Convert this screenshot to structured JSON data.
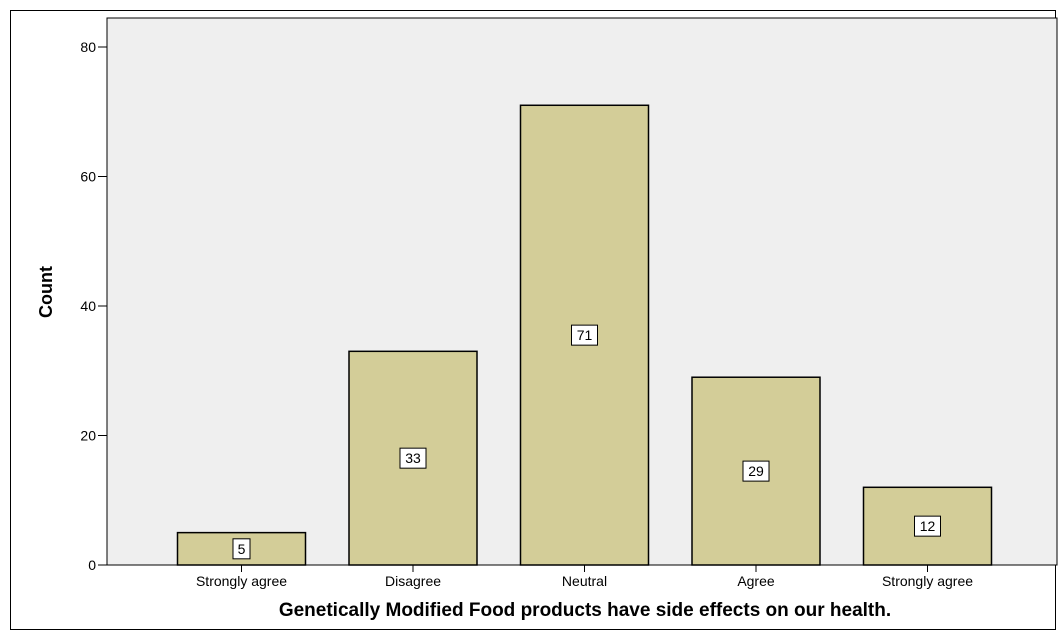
{
  "chart_data": {
    "type": "bar",
    "title": "",
    "xlabel": "Genetically Modified Food products have side effects on our health.",
    "ylabel": "Count",
    "categories": [
      "Strongly agree",
      "Disagree",
      "Neutral",
      "Agree",
      "Strongly agree"
    ],
    "values": [
      5,
      33,
      71,
      29,
      12
    ],
    "data_labels": [
      "5",
      "33",
      "71",
      "29",
      "12"
    ],
    "ylim": [
      0,
      80
    ],
    "yticks": [
      0,
      20,
      40,
      60,
      80
    ],
    "ytick_labels": [
      "0",
      "20",
      "40",
      "60",
      "80"
    ],
    "grid": false,
    "legend": "none",
    "colors": {
      "bar_fill": "#d3cd98",
      "bar_stroke": "#000000",
      "plot_background": "#efefef",
      "label_box": "#ffffff"
    }
  }
}
